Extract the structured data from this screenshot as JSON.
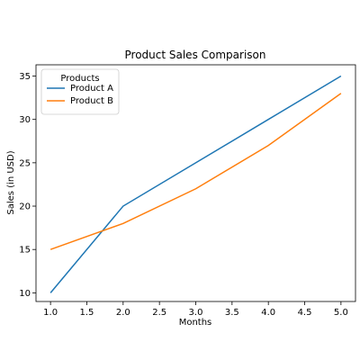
{
  "chart_data": {
    "type": "line",
    "title": "Product Sales Comparison",
    "xlabel": "Months",
    "ylabel": "Sales (in USD)",
    "x": [
      1,
      2,
      3,
      4,
      5
    ],
    "xlim": [
      0.8,
      5.2
    ],
    "ylim": [
      9.0,
      36.3
    ],
    "xticks": [
      "1.0",
      "1.5",
      "2.0",
      "2.5",
      "3.0",
      "3.5",
      "4.0",
      "4.5",
      "5.0"
    ],
    "yticks": [
      "10",
      "15",
      "20",
      "25",
      "30",
      "35"
    ],
    "grid": false,
    "legend": {
      "title": "Products",
      "placement": "top-left"
    },
    "series": [
      {
        "name": "Product A",
        "color": "#1f77b4",
        "values": [
          10,
          20,
          25,
          30,
          35
        ]
      },
      {
        "name": "Product B",
        "color": "#ff7f0e",
        "values": [
          15,
          18,
          22,
          27,
          33
        ]
      }
    ]
  }
}
